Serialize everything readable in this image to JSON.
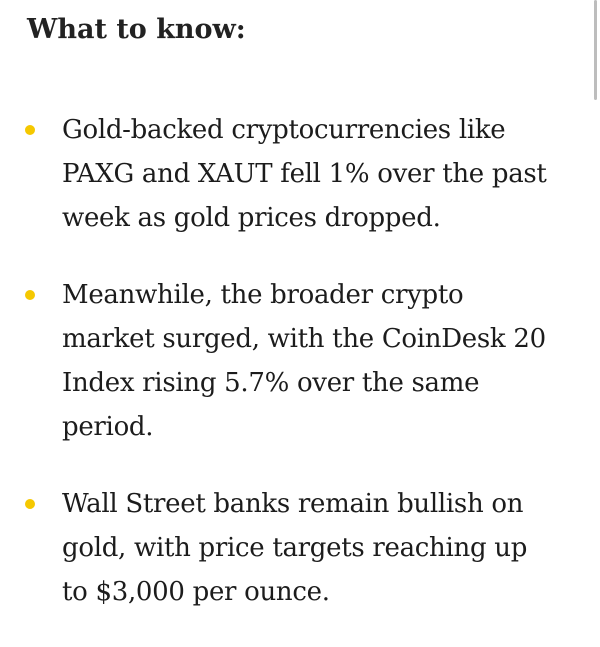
{
  "heading": "What to know:",
  "bullet_color": "#f5c800",
  "items": [
    {
      "lines": [
        "Gold-backed cryptocurrencies like",
        "PAXG and XAUT fell 1% over the past",
        "week as gold prices dropped."
      ]
    },
    {
      "lines": [
        "Meanwhile, the broader crypto",
        "market surged, with the CoinDesk 20",
        "Index rising 5.7% over the same",
        "period."
      ]
    },
    {
      "lines": [
        "Wall Street banks remain bullish on",
        "gold, with price targets reaching up",
        "to $3,000 per ounce."
      ]
    }
  ]
}
